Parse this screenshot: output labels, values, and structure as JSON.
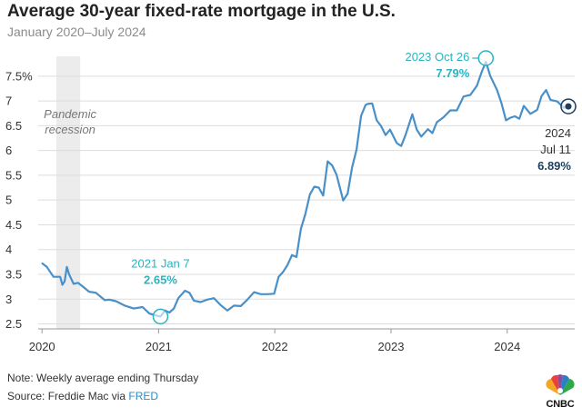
{
  "header": {
    "title": "Average 30-year fixed-rate mortgage in the U.S.",
    "subtitle": "January 2020–July 2024"
  },
  "footer": {
    "note": "Note: Weekly average ending Thursday",
    "source_prefix": "Source: Freddie Mac via ",
    "source_link": "FRED",
    "logo_text": "CNBC"
  },
  "colors": {
    "line": "#4a90c8",
    "accent_teal": "#2ab3c0",
    "accent_navy": "#1d3f5e",
    "recession_band": "#ececec",
    "grid": "#dddddd"
  },
  "chart_data": {
    "type": "line",
    "title": "Average 30-year fixed-rate mortgage in the U.S.",
    "subtitle": "January 2020–July 2024",
    "xlabel": "",
    "ylabel": "",
    "x_ticks": [
      "2020",
      "2021",
      "2022",
      "2023",
      "2024"
    ],
    "y_ticks": [
      "2.5",
      "3",
      "3.5",
      "4",
      "4.5",
      "5",
      "5.5",
      "6",
      "6.5",
      "7",
      "7.5%"
    ],
    "ylim": [
      2.4,
      7.9
    ],
    "xlim": [
      "2019-12-20",
      "2024-07-31"
    ],
    "grid": "horizontal",
    "shaded_period": {
      "label": "Pandemic recession",
      "start": "2020-02-15",
      "end": "2020-04-30"
    },
    "annotations": [
      {
        "date_label": "2021 Jan 7",
        "value_label": "2.65%",
        "x": "2021-01-07",
        "y": 2.65
      },
      {
        "date_label": "2023 Oct 26",
        "value_label": "7.79%",
        "x": "2023-10-26",
        "y": 7.79
      },
      {
        "date_label": "2024",
        "date_label_2": "Jul 11",
        "value_label": "6.89%",
        "x": "2024-07-11",
        "y": 6.89
      }
    ],
    "series": [
      {
        "x": [
          "2020-01-02",
          "2020-01-16",
          "2020-02-06",
          "2020-02-27",
          "2020-03-05",
          "2020-03-12",
          "2020-03-19",
          "2020-03-26",
          "2020-04-09",
          "2020-04-23",
          "2020-05-07",
          "2020-05-28",
          "2020-06-18",
          "2020-07-16",
          "2020-07-30",
          "2020-08-20",
          "2020-09-17",
          "2020-10-15",
          "2020-11-12",
          "2020-12-03",
          "2020-12-24",
          "2021-01-07",
          "2021-01-21",
          "2021-02-04",
          "2021-02-18",
          "2021-03-04",
          "2021-03-25",
          "2021-04-08",
          "2021-04-22",
          "2021-05-13",
          "2021-06-03",
          "2021-06-24",
          "2021-07-15",
          "2021-08-05",
          "2021-08-26",
          "2021-09-16",
          "2021-10-07",
          "2021-10-28",
          "2021-11-18",
          "2021-12-09",
          "2021-12-30",
          "2022-01-13",
          "2022-01-27",
          "2022-02-10",
          "2022-02-24",
          "2022-03-10",
          "2022-03-24",
          "2022-04-07",
          "2022-04-21",
          "2022-05-05",
          "2022-05-19",
          "2022-06-02",
          "2022-06-16",
          "2022-06-30",
          "2022-07-14",
          "2022-08-04",
          "2022-08-18",
          "2022-09-01",
          "2022-09-15",
          "2022-09-29",
          "2022-10-13",
          "2022-10-20",
          "2022-11-03",
          "2022-11-17",
          "2022-12-01",
          "2022-12-15",
          "2022-12-29",
          "2023-01-19",
          "2023-02-02",
          "2023-02-16",
          "2023-03-09",
          "2023-03-23",
          "2023-04-06",
          "2023-04-27",
          "2023-05-11",
          "2023-05-25",
          "2023-06-15",
          "2023-07-06",
          "2023-07-27",
          "2023-08-17",
          "2023-09-07",
          "2023-09-28",
          "2023-10-12",
          "2023-10-26",
          "2023-11-09",
          "2023-11-30",
          "2023-12-14",
          "2023-12-28",
          "2024-01-11",
          "2024-01-25",
          "2024-02-08",
          "2024-02-22",
          "2024-03-14",
          "2024-04-04",
          "2024-04-18",
          "2024-05-02",
          "2024-05-16",
          "2024-06-06",
          "2024-06-27",
          "2024-07-11"
        ],
        "values": [
          3.72,
          3.65,
          3.45,
          3.45,
          3.29,
          3.36,
          3.65,
          3.5,
          3.31,
          3.33,
          3.26,
          3.15,
          3.13,
          2.98,
          2.99,
          2.96,
          2.87,
          2.81,
          2.84,
          2.71,
          2.67,
          2.65,
          2.77,
          2.73,
          2.81,
          3.02,
          3.17,
          3.13,
          2.97,
          2.94,
          2.99,
          3.02,
          2.88,
          2.77,
          2.87,
          2.86,
          2.99,
          3.14,
          3.1,
          3.1,
          3.11,
          3.45,
          3.55,
          3.69,
          3.89,
          3.85,
          4.42,
          4.72,
          5.11,
          5.27,
          5.25,
          5.09,
          5.78,
          5.7,
          5.51,
          4.99,
          5.13,
          5.66,
          6.02,
          6.7,
          6.92,
          6.94,
          6.95,
          6.61,
          6.49,
          6.31,
          6.42,
          6.15,
          6.09,
          6.32,
          6.73,
          6.42,
          6.28,
          6.43,
          6.35,
          6.57,
          6.67,
          6.81,
          6.81,
          7.09,
          7.12,
          7.31,
          7.57,
          7.79,
          7.5,
          7.22,
          6.95,
          6.61,
          6.66,
          6.69,
          6.64,
          6.9,
          6.74,
          6.82,
          7.1,
          7.22,
          7.02,
          6.99,
          6.86,
          6.89
        ]
      }
    ]
  }
}
